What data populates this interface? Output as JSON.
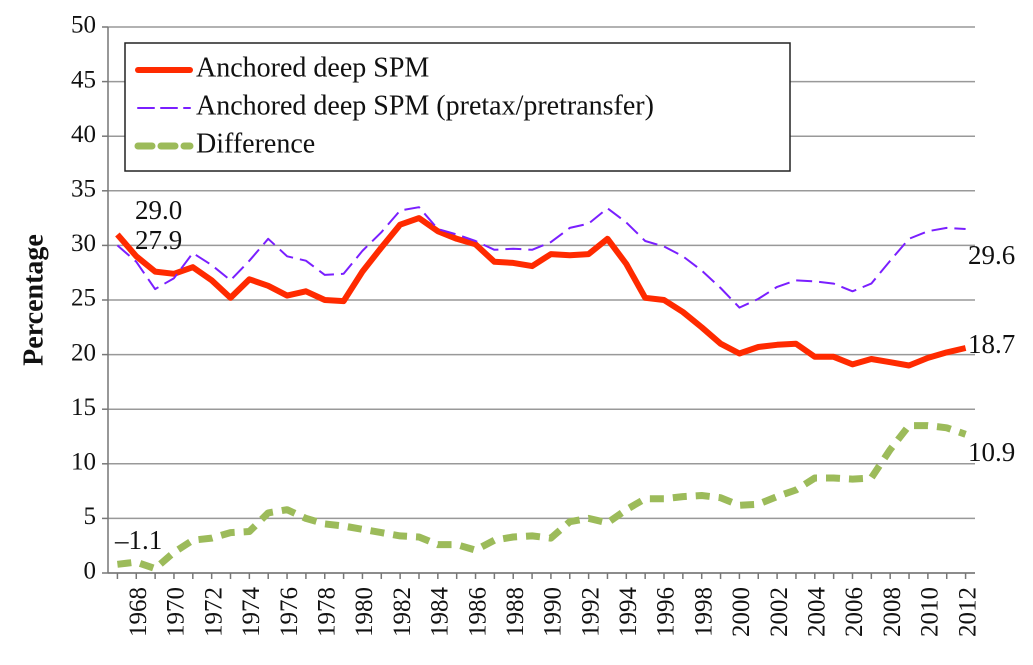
{
  "chart_data": {
    "type": "line",
    "y_label": "Percentage",
    "categories": [
      null,
      "1968",
      null,
      "1970",
      null,
      "1972",
      null,
      "1974",
      null,
      "1976",
      null,
      "1978",
      null,
      "1980",
      null,
      "1982",
      null,
      "1984",
      null,
      "1986",
      null,
      "1988",
      null,
      "1990",
      null,
      "1992",
      null,
      "1994",
      null,
      "1996",
      null,
      "1998",
      null,
      "2000",
      null,
      "2002",
      null,
      "2004",
      null,
      "2006",
      null,
      "2008",
      null,
      "2010",
      null,
      "2012"
    ],
    "series": [
      {
        "name": "Anchored deep SPM",
        "color": "#ff2a00",
        "line_style": "solid",
        "values": [
          31.0,
          29.0,
          27.6,
          27.4,
          28.0,
          26.8,
          25.2,
          26.9,
          26.3,
          25.4,
          25.8,
          25.0,
          24.9,
          27.6,
          29.8,
          31.9,
          32.5,
          31.3,
          30.6,
          30.1,
          28.5,
          28.4,
          28.1,
          29.2,
          29.1,
          29.2,
          30.6,
          28.3,
          25.2,
          25.0,
          23.9,
          22.5,
          21.0,
          20.1,
          20.7,
          20.9,
          21.0,
          19.8,
          19.8,
          19.1,
          19.6,
          19.3,
          19.0,
          19.7,
          20.2,
          20.6
        ]
      },
      {
        "name": "Anchored deep SPM (pretax/pretransfer)",
        "color": "#7a1fff",
        "line_style": "dashed",
        "values": [
          30.0,
          28.5,
          26.0,
          27.0,
          29.3,
          28.2,
          26.8,
          28.6,
          30.6,
          29.0,
          28.6,
          27.3,
          27.4,
          29.5,
          31.2,
          33.2,
          33.5,
          31.5,
          31.0,
          30.4,
          29.6,
          29.7,
          29.6,
          30.3,
          31.6,
          32.0,
          33.4,
          32.1,
          30.4,
          29.9,
          29.0,
          27.7,
          26.1,
          24.3,
          25.1,
          26.2,
          26.8,
          26.7,
          26.5,
          25.8,
          26.5,
          28.6,
          30.6,
          31.3,
          31.6,
          31.5
        ]
      },
      {
        "name": "Difference",
        "color": "#9cbb5a",
        "line_style": "thick-dashed",
        "values": [
          0.8,
          1.0,
          0.4,
          1.9,
          3.0,
          3.2,
          3.7,
          3.8,
          5.5,
          5.8,
          5.0,
          4.5,
          4.3,
          4.0,
          3.7,
          3.4,
          3.3,
          2.6,
          2.6,
          2.1,
          3.0,
          3.3,
          3.4,
          3.2,
          4.7,
          5.0,
          4.6,
          5.8,
          6.8,
          6.8,
          7.0,
          7.1,
          6.9,
          6.2,
          6.3,
          7.0,
          7.6,
          8.7,
          8.7,
          8.6,
          8.7,
          11.3,
          13.5,
          13.5,
          13.3,
          12.7
        ]
      }
    ],
    "annotations": [
      "29.0",
      "27.9",
      "–1.1",
      "29.6",
      "18.7",
      "10.9"
    ],
    "ylim": [
      0,
      50
    ],
    "yticks": [
      0,
      5,
      10,
      15,
      20,
      25,
      30,
      35,
      40,
      45,
      50
    ],
    "grid": true,
    "legend": "upper left"
  }
}
